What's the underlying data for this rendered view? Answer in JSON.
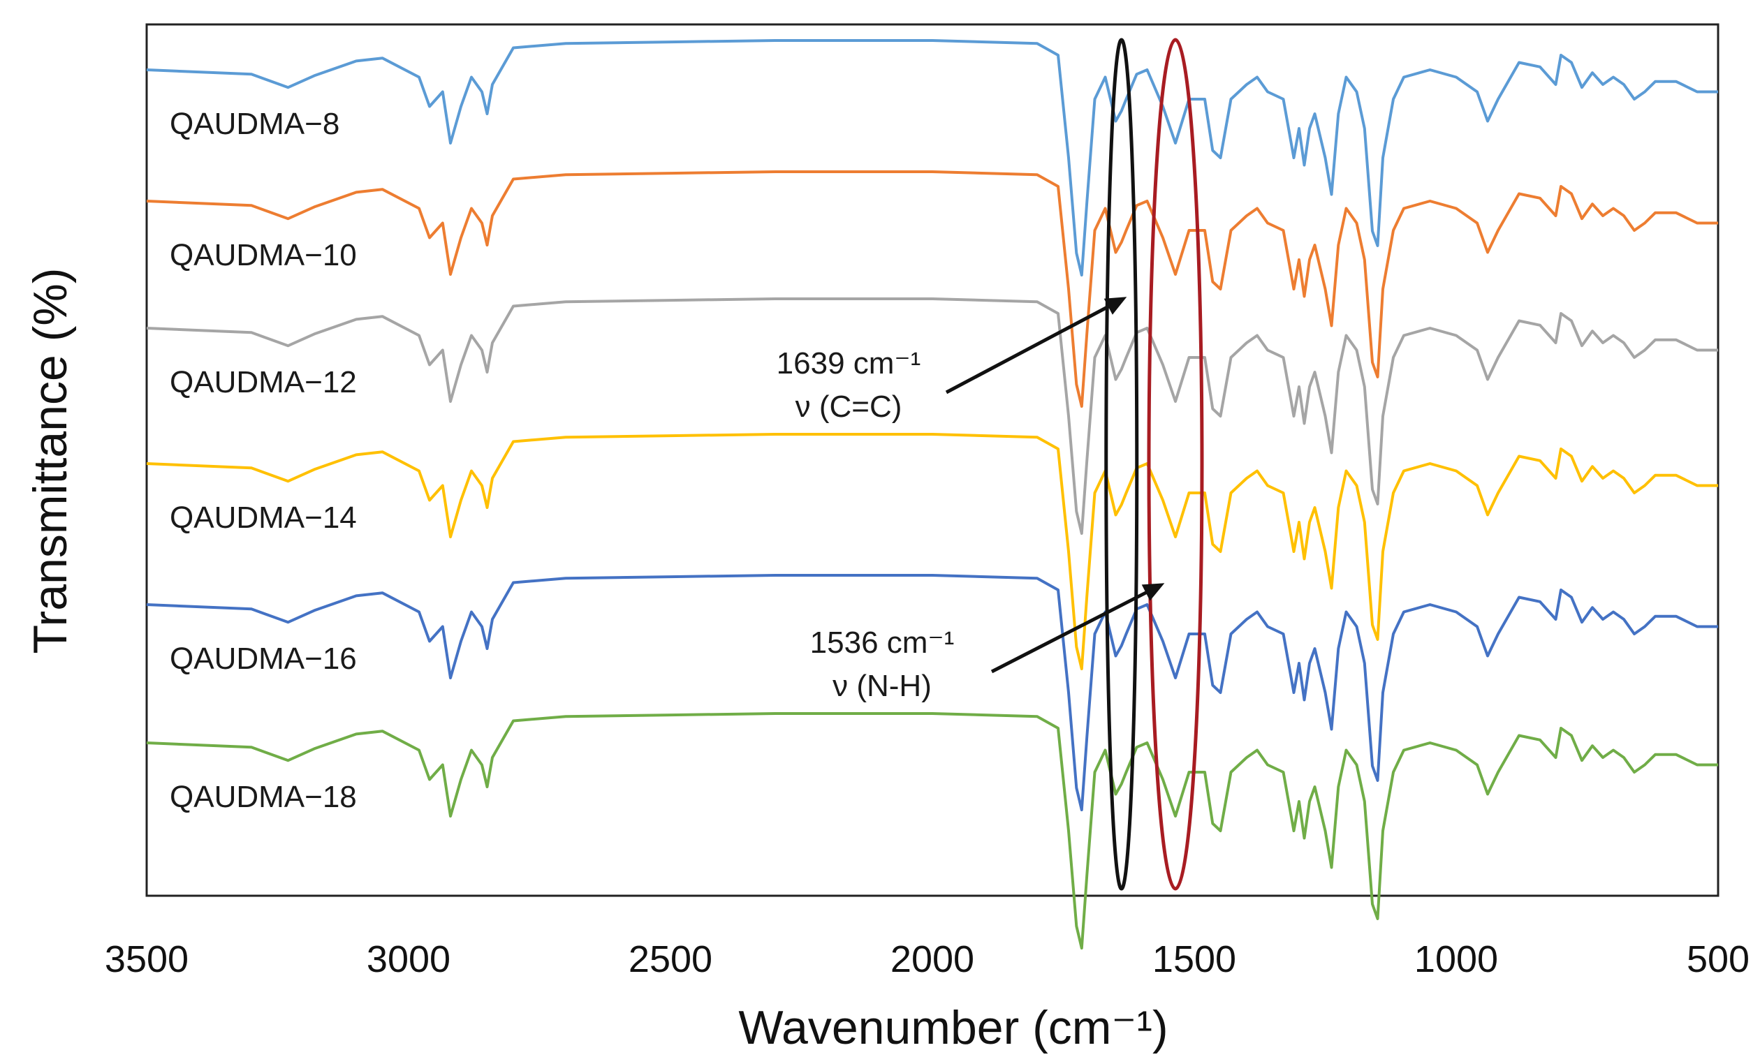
{
  "chart_data": {
    "type": "line",
    "xlabel": "Wavenumber (cm⁻¹)",
    "ylabel": "Transmittance (%)",
    "xlim": [
      3500,
      500
    ],
    "x_reversed": true,
    "x_ticks": [
      3500,
      3000,
      2500,
      2000,
      1500,
      1000,
      500
    ],
    "y_tick_labels": false,
    "grid": false,
    "legend": "labels-left-of-traces",
    "colors": [
      "#5b9bd5",
      "#ed7d31",
      "#a5a5a5",
      "#ffc000",
      "#4472c4",
      "#70ad47"
    ],
    "series": [
      {
        "name": "QAUDMA−8",
        "offset": 6,
        "depth": 1.0,
        "x": [
          3500,
          3300,
          3230,
          3180,
          3100,
          3050,
          2980,
          2960,
          2935,
          2920,
          2900,
          2880,
          2860,
          2850,
          2840,
          2800,
          2700,
          2500,
          2300,
          2000,
          1800,
          1760,
          1740,
          1725,
          1715,
          1705,
          1690,
          1670,
          1650,
          1639,
          1630,
          1610,
          1590,
          1560,
          1536,
          1510,
          1480,
          1465,
          1450,
          1430,
          1400,
          1380,
          1360,
          1330,
          1310,
          1300,
          1290,
          1280,
          1270,
          1250,
          1238,
          1225,
          1210,
          1190,
          1175,
          1160,
          1150,
          1140,
          1120,
          1100,
          1050,
          1000,
          960,
          940,
          920,
          880,
          840,
          810,
          800,
          780,
          760,
          740,
          720,
          700,
          680,
          660,
          640,
          620,
          580,
          540,
          500
        ],
        "y": [
          0,
          -0.3,
          -1.2,
          -0.4,
          0.6,
          0.8,
          -0.5,
          -2.5,
          -1.5,
          -5.0,
          -2.5,
          -0.5,
          -1.5,
          -3.0,
          -1.0,
          1.5,
          1.8,
          1.9,
          2.0,
          2.0,
          1.8,
          1.0,
          -6.0,
          -12.5,
          -14.0,
          -9.0,
          -2.0,
          -0.5,
          -3.5,
          -2.8,
          -2.0,
          -0.3,
          0,
          -2.5,
          -5.0,
          -2.0,
          -2.0,
          -5.5,
          -6.0,
          -2.0,
          -1.0,
          -0.5,
          -1.5,
          -2.0,
          -6.0,
          -4.0,
          -6.5,
          -4.0,
          -3.0,
          -6.0,
          -8.5,
          -3.0,
          -0.5,
          -1.5,
          -4.0,
          -11.0,
          -12.0,
          -6.0,
          -2.0,
          -0.5,
          0,
          -0.5,
          -1.5,
          -3.5,
          -2.0,
          0.5,
          0.2,
          -1.0,
          1.0,
          0.5,
          -1.2,
          -0.2,
          -1.0,
          -0.5,
          -1.0,
          -2.0,
          -1.5,
          -0.8,
          -0.8,
          -1.5,
          -1.5
        ]
      },
      {
        "name": "QAUDMA−10",
        "offset": 5,
        "depth": 1.0,
        "x": [
          3500,
          3300,
          3230,
          3180,
          3100,
          3050,
          2980,
          2960,
          2935,
          2920,
          2900,
          2880,
          2860,
          2850,
          2840,
          2800,
          2700,
          2500,
          2300,
          2000,
          1800,
          1760,
          1740,
          1725,
          1715,
          1705,
          1690,
          1670,
          1650,
          1639,
          1630,
          1610,
          1590,
          1560,
          1536,
          1510,
          1480,
          1465,
          1450,
          1430,
          1400,
          1380,
          1360,
          1330,
          1310,
          1300,
          1290,
          1280,
          1270,
          1250,
          1238,
          1225,
          1210,
          1190,
          1175,
          1160,
          1150,
          1140,
          1120,
          1100,
          1050,
          1000,
          960,
          940,
          920,
          880,
          840,
          810,
          800,
          780,
          760,
          740,
          720,
          700,
          680,
          660,
          640,
          620,
          580,
          540,
          500
        ],
        "y": [
          0,
          -0.3,
          -1.2,
          -0.4,
          0.6,
          0.8,
          -0.5,
          -2.5,
          -1.5,
          -5.0,
          -2.5,
          -0.5,
          -1.5,
          -3.0,
          -1.0,
          1.5,
          1.8,
          1.9,
          2.0,
          2.0,
          1.8,
          1.0,
          -6.0,
          -12.5,
          -14.0,
          -9.0,
          -2.0,
          -0.5,
          -3.5,
          -2.8,
          -2.0,
          -0.3,
          0,
          -2.5,
          -5.0,
          -2.0,
          -2.0,
          -5.5,
          -6.0,
          -2.0,
          -1.0,
          -0.5,
          -1.5,
          -2.0,
          -6.0,
          -4.0,
          -6.5,
          -4.0,
          -3.0,
          -6.0,
          -8.5,
          -3.0,
          -0.5,
          -1.5,
          -4.0,
          -11.0,
          -12.0,
          -6.0,
          -2.0,
          -0.5,
          0,
          -0.5,
          -1.5,
          -3.5,
          -2.0,
          0.5,
          0.2,
          -1.0,
          1.0,
          0.5,
          -1.2,
          -0.2,
          -1.0,
          -0.5,
          -1.0,
          -2.0,
          -1.5,
          -0.8,
          -0.8,
          -1.5,
          -1.5
        ]
      },
      {
        "name": "QAUDMA−12",
        "offset": 4,
        "depth": 1.0,
        "x": [
          3500,
          3300,
          3230,
          3180,
          3100,
          3050,
          2980,
          2960,
          2935,
          2920,
          2900,
          2880,
          2860,
          2850,
          2840,
          2800,
          2700,
          2500,
          2300,
          2000,
          1800,
          1760,
          1740,
          1725,
          1715,
          1705,
          1690,
          1670,
          1650,
          1639,
          1630,
          1610,
          1590,
          1560,
          1536,
          1510,
          1480,
          1465,
          1450,
          1430,
          1400,
          1380,
          1360,
          1330,
          1310,
          1300,
          1290,
          1280,
          1270,
          1250,
          1238,
          1225,
          1210,
          1190,
          1175,
          1160,
          1150,
          1140,
          1120,
          1100,
          1050,
          1000,
          960,
          940,
          920,
          880,
          840,
          810,
          800,
          780,
          760,
          740,
          720,
          700,
          680,
          660,
          640,
          620,
          580,
          540,
          500
        ],
        "y": [
          0,
          -0.3,
          -1.2,
          -0.4,
          0.6,
          0.8,
          -0.5,
          -2.5,
          -1.5,
          -5.0,
          -2.5,
          -0.5,
          -1.5,
          -3.0,
          -1.0,
          1.5,
          1.8,
          1.9,
          2.0,
          2.0,
          1.8,
          1.0,
          -6.0,
          -12.5,
          -14.0,
          -9.0,
          -2.0,
          -0.5,
          -3.5,
          -2.8,
          -2.0,
          -0.3,
          0,
          -2.5,
          -5.0,
          -2.0,
          -2.0,
          -5.5,
          -6.0,
          -2.0,
          -1.0,
          -0.5,
          -1.5,
          -2.0,
          -6.0,
          -4.0,
          -6.5,
          -4.0,
          -3.0,
          -6.0,
          -8.5,
          -3.0,
          -0.5,
          -1.5,
          -4.0,
          -11.0,
          -12.0,
          -6.0,
          -2.0,
          -0.5,
          0,
          -0.5,
          -1.5,
          -3.5,
          -2.0,
          0.5,
          0.2,
          -1.0,
          1.0,
          0.5,
          -1.2,
          -0.2,
          -1.0,
          -0.5,
          -1.0,
          -2.0,
          -1.5,
          -0.8,
          -0.8,
          -1.5,
          -1.5
        ]
      },
      {
        "name": "QAUDMA−14",
        "offset": 3,
        "depth": 1.0,
        "x": [
          3500,
          3300,
          3230,
          3180,
          3100,
          3050,
          2980,
          2960,
          2935,
          2920,
          2900,
          2880,
          2860,
          2850,
          2840,
          2800,
          2700,
          2500,
          2300,
          2000,
          1800,
          1760,
          1740,
          1725,
          1715,
          1705,
          1690,
          1670,
          1650,
          1639,
          1630,
          1610,
          1590,
          1560,
          1536,
          1510,
          1480,
          1465,
          1450,
          1430,
          1400,
          1380,
          1360,
          1330,
          1310,
          1300,
          1290,
          1280,
          1270,
          1250,
          1238,
          1225,
          1210,
          1190,
          1175,
          1160,
          1150,
          1140,
          1120,
          1100,
          1050,
          1000,
          960,
          940,
          920,
          880,
          840,
          810,
          800,
          780,
          760,
          740,
          720,
          700,
          680,
          660,
          640,
          620,
          580,
          540,
          500
        ],
        "y": [
          0,
          -0.3,
          -1.2,
          -0.4,
          0.6,
          0.8,
          -0.5,
          -2.5,
          -1.5,
          -5.0,
          -2.5,
          -0.5,
          -1.5,
          -3.0,
          -1.0,
          1.5,
          1.8,
          1.9,
          2.0,
          2.0,
          1.8,
          1.0,
          -6.0,
          -12.5,
          -14.0,
          -9.0,
          -2.0,
          -0.5,
          -3.5,
          -2.8,
          -2.0,
          -0.3,
          0,
          -2.5,
          -5.0,
          -2.0,
          -2.0,
          -5.5,
          -6.0,
          -2.0,
          -1.0,
          -0.5,
          -1.5,
          -2.0,
          -6.0,
          -4.0,
          -6.5,
          -4.0,
          -3.0,
          -6.0,
          -8.5,
          -3.0,
          -0.5,
          -1.5,
          -4.0,
          -11.0,
          -12.0,
          -6.0,
          -2.0,
          -0.5,
          0,
          -0.5,
          -1.5,
          -3.5,
          -2.0,
          0.5,
          0.2,
          -1.0,
          1.0,
          0.5,
          -1.2,
          -0.2,
          -1.0,
          -0.5,
          -1.0,
          -2.0,
          -1.5,
          -0.8,
          -0.8,
          -1.5,
          -1.5
        ]
      },
      {
        "name": "QAUDMA−16",
        "offset": 2,
        "depth": 1.0,
        "x": [
          3500,
          3300,
          3230,
          3180,
          3100,
          3050,
          2980,
          2960,
          2935,
          2920,
          2900,
          2880,
          2860,
          2850,
          2840,
          2800,
          2700,
          2500,
          2300,
          2000,
          1800,
          1760,
          1740,
          1725,
          1715,
          1705,
          1690,
          1670,
          1650,
          1639,
          1630,
          1610,
          1590,
          1560,
          1536,
          1510,
          1480,
          1465,
          1450,
          1430,
          1400,
          1380,
          1360,
          1330,
          1310,
          1300,
          1290,
          1280,
          1270,
          1250,
          1238,
          1225,
          1210,
          1190,
          1175,
          1160,
          1150,
          1140,
          1120,
          1100,
          1050,
          1000,
          960,
          940,
          920,
          880,
          840,
          810,
          800,
          780,
          760,
          740,
          720,
          700,
          680,
          660,
          640,
          620,
          580,
          540,
          500
        ],
        "y": [
          0,
          -0.3,
          -1.2,
          -0.4,
          0.6,
          0.8,
          -0.5,
          -2.5,
          -1.5,
          -5.0,
          -2.5,
          -0.5,
          -1.5,
          -3.0,
          -1.0,
          1.5,
          1.8,
          1.9,
          2.0,
          2.0,
          1.8,
          1.0,
          -6.0,
          -12.5,
          -14.0,
          -9.0,
          -2.0,
          -0.5,
          -3.5,
          -2.8,
          -2.0,
          -0.3,
          0,
          -2.5,
          -5.0,
          -2.0,
          -2.0,
          -5.5,
          -6.0,
          -2.0,
          -1.0,
          -0.5,
          -1.5,
          -2.0,
          -6.0,
          -4.0,
          -6.5,
          -4.0,
          -3.0,
          -6.0,
          -8.5,
          -3.0,
          -0.5,
          -1.5,
          -4.0,
          -11.0,
          -12.0,
          -6.0,
          -2.0,
          -0.5,
          0,
          -0.5,
          -1.5,
          -3.5,
          -2.0,
          0.5,
          0.2,
          -1.0,
          1.0,
          0.5,
          -1.2,
          -0.2,
          -1.0,
          -0.5,
          -1.0,
          -2.0,
          -1.5,
          -0.8,
          -0.8,
          -1.5,
          -1.5
        ]
      },
      {
        "name": "QAUDMA−18",
        "offset": 1,
        "depth": 1.0,
        "x": [
          3500,
          3300,
          3230,
          3180,
          3100,
          3050,
          2980,
          2960,
          2935,
          2920,
          2900,
          2880,
          2860,
          2850,
          2840,
          2800,
          2700,
          2500,
          2300,
          2000,
          1800,
          1760,
          1740,
          1725,
          1715,
          1705,
          1690,
          1670,
          1650,
          1639,
          1630,
          1610,
          1590,
          1560,
          1536,
          1510,
          1480,
          1465,
          1450,
          1430,
          1400,
          1380,
          1360,
          1330,
          1310,
          1300,
          1290,
          1280,
          1270,
          1250,
          1238,
          1225,
          1210,
          1190,
          1175,
          1160,
          1150,
          1140,
          1120,
          1100,
          1050,
          1000,
          960,
          940,
          920,
          880,
          840,
          810,
          800,
          780,
          760,
          740,
          720,
          700,
          680,
          660,
          640,
          620,
          580,
          540,
          500
        ],
        "y": [
          0,
          -0.3,
          -1.2,
          -0.4,
          0.6,
          0.8,
          -0.5,
          -2.5,
          -1.5,
          -5.0,
          -2.5,
          -0.5,
          -1.5,
          -3.0,
          -1.0,
          1.5,
          1.8,
          1.9,
          2.0,
          2.0,
          1.8,
          1.0,
          -6.0,
          -12.5,
          -14.0,
          -9.0,
          -2.0,
          -0.5,
          -3.5,
          -2.8,
          -2.0,
          -0.3,
          0,
          -2.5,
          -5.0,
          -2.0,
          -2.0,
          -5.5,
          -6.0,
          -2.0,
          -1.0,
          -0.5,
          -1.5,
          -2.0,
          -6.0,
          -4.0,
          -6.5,
          -4.0,
          -3.0,
          -6.0,
          -8.5,
          -3.0,
          -0.5,
          -1.5,
          -4.0,
          -11.0,
          -12.0,
          -6.0,
          -2.0,
          -0.5,
          0,
          -0.5,
          -1.5,
          -3.5,
          -2.0,
          0.5,
          0.2,
          -1.0,
          1.0,
          0.5,
          -1.2,
          -0.2,
          -1.0,
          -0.5,
          -1.0,
          -2.0,
          -1.5,
          -0.8,
          -0.8,
          -1.5,
          -1.5
        ]
      }
    ],
    "annotations": [
      {
        "wavenumber": 1639,
        "line1": "1639 cm⁻¹",
        "line2": "ν (C=C)",
        "ellipse_color": "#111111"
      },
      {
        "wavenumber": 1536,
        "line1": "1536 cm⁻¹",
        "line2": "ν (N-H)",
        "ellipse_color": "#a81c22"
      }
    ]
  }
}
